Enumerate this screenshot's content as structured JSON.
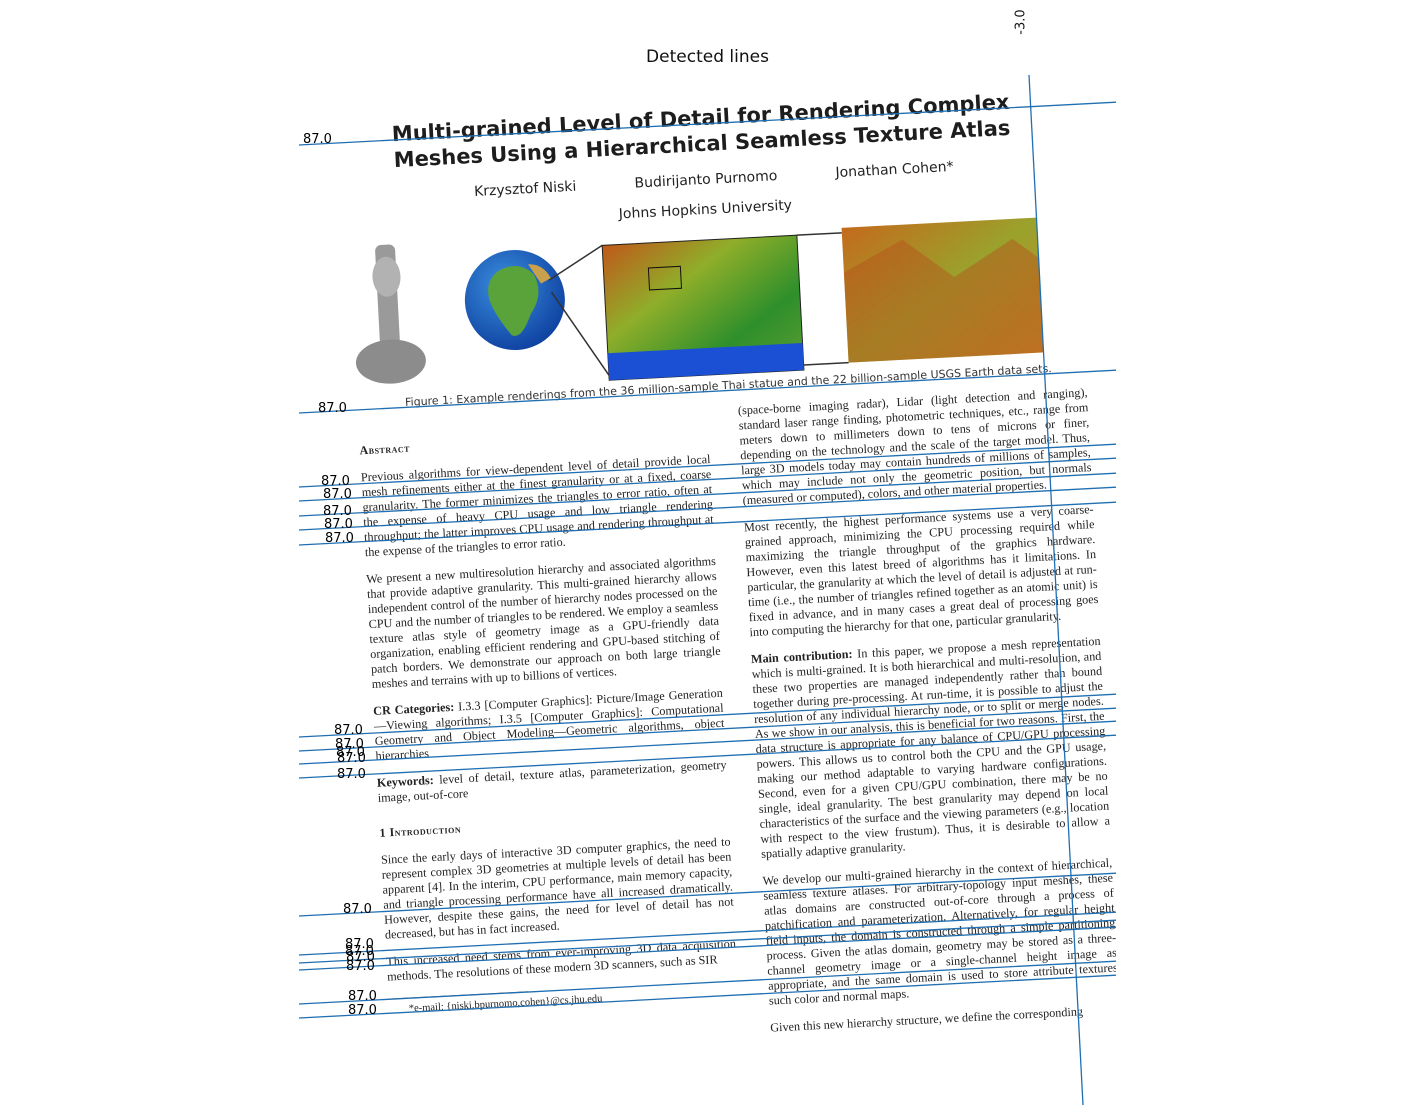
{
  "plot": {
    "title": "Detected lines",
    "angle_labels": [
      "87.0",
      "87.0",
      "87.0",
      "87.0",
      "87.0",
      "87.0",
      "87.0",
      "87.0",
      "87.0",
      "87.0",
      "87.0",
      "87.0",
      "87.0",
      "87.0",
      "87.0",
      "87.0",
      "87.0",
      "87.0",
      "87.0",
      "87.0",
      "87.0",
      "87.0"
    ],
    "vertical_label": "-3.0",
    "line_color": "#1f6fb2"
  },
  "document": {
    "title": "Multi-grained Level of Detail for Rendering Complex Meshes Using a Hierarchical Seamless Texture Atlas",
    "authors": [
      "Krzysztof Niski",
      "Budirijanto Purnomo",
      "Jonathan Cohen*"
    ],
    "affiliation": "Johns Hopkins University",
    "figure_caption": "Figure 1: Example renderings from the 36 million-sample Thai statue and the 22 billion-sample USGS Earth data sets.",
    "abstract_heading": "Abstract",
    "abstract_p1": "Previous algorithms for view-dependent level of detail provide local mesh refinements either at the finest granularity or at a fixed, coarse granularity. The former minimizes the triangles to error ratio, often at the expense of heavy CPU usage and low triangle rendering throughput; the latter improves CPU usage and rendering throughput at the expense of the triangles to error ratio.",
    "abstract_p2": "We present a new multiresolution hierarchy and associated algorithms that provide adaptive granularity. This multi-grained hierarchy allows independent control of the number of hierarchy nodes processed on the CPU and the number of triangles to be rendered. We employ a seamless texture atlas style of geometry image as a GPU-friendly data organization, enabling efficient rendering and GPU-based stitching of patch borders. We demonstrate our approach on both large triangle meshes and terrains with up to billions of vertices.",
    "cr_label": "CR Categories:",
    "cr_text": "I.3.3 [Computer Graphics]: Picture/Image Generation—Viewing algorithms; I.3.5 [Computer Graphics]: Computational Geometry and Object Modeling—Geometric algorithms, object hierarchies",
    "keywords_label": "Keywords:",
    "keywords_text": "level of detail, texture atlas, parameterization, geometry image, out-of-core",
    "intro_heading": "1   Introduction",
    "intro_p1": "Since the early days of interactive 3D computer graphics, the need to represent complex 3D geometries at multiple levels of detail has been apparent [4]. In the interim, CPU performance, main memory capacity, and triangle processing performance have all increased dramatically. However, despite these gains, the need for level of detail has not decreased, but has in fact increased.",
    "intro_p2": "This increased need stems from ever-improving 3D data acquisition methods. The resolutions of these modern 3D scanners, such as SIR",
    "footnote": "*e-mail: {niski,bpurnomo,cohen}@cs.jhu.edu",
    "right_p1": "(space-borne imaging radar), Lidar (light detection and ranging), standard laser range finding, photometric techniques, etc., range from meters down to millimeters down to tens of microns or finer, depending on the technology and the scale of the target model. Thus, large 3D models today may contain hundreds of millions of samples, which may include not only the geometric position, but normals (measured or computed), colors, and other material properties.",
    "right_p2": "Most recently, the highest performance systems use a very coarse-grained approach, minimizing the CPU processing required while maximizing the triangle throughput of the graphics hardware. However, even this latest breed of algorithms has it limitations. In particular, the granularity at which the level of detail is adjusted at run-time (i.e., the number of triangles refined together as an atomic unit) is fixed in advance, and in many cases a great deal of processing goes into computing the hierarchy for that one, particular granularity.",
    "right_p3_label": "Main contribution:",
    "right_p3": "In this paper, we propose a mesh representation which is multi-grained. It is both hierarchical and multi-resolution, and these two properties are managed independently rather than bound together during pre-processing. At run-time, it is possible to adjust the resolution of any individual hierarchy node, or to split or merge nodes. As we show in our analysis, this is beneficial for two reasons. First, the data structure is appropriate for any balance of CPU/GPU processing powers. This allows us to control both the CPU and the GPU usage, making our method adaptable to varying hardware configurations. Second, even for a given CPU/GPU combination, there may be no single, ideal granularity. The best granularity may depend on local characteristics of the surface and the viewing parameters (e.g., location with respect to the view frustum). Thus, it is desirable to allow a spatially adaptive granularity.",
    "right_p4": "We develop our multi-grained hierarchy in the context of hierarchical, seamless texture atlases. For arbitrary-topology input meshes, these atlas domains are constructed out-of-core through a process of patchification and parameterization. Alternatively, for regular height field inputs, the domain is constructed through a simple partitioning process. Given the atlas domain, geometry may be stored as a three-channel geometry image or a single-channel height image as appropriate, and the same domain is used to store attribute textures such color and normal maps.",
    "right_p5": "Given this new hierarchy structure, we define the corresponding"
  }
}
